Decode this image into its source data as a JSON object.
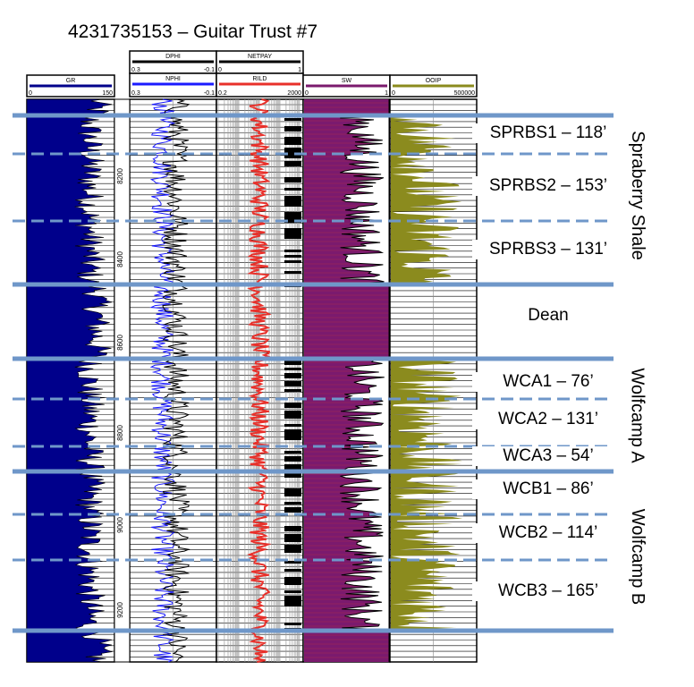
{
  "title": "4231735153 – Guitar Trust #7",
  "colors": {
    "gr": "#00008b",
    "nphi": "#1a1aff",
    "rild": "#e8302a",
    "sw_fill": "#7b1a6e",
    "ooip": "#8b8b1e",
    "zone_line": "#6f97c9"
  },
  "tracks": {
    "gr": {
      "name": "GR",
      "min": "0",
      "max": "150"
    },
    "dphi": {
      "name": "DPHI",
      "min": "0.3",
      "max": "-0.1"
    },
    "nphi": {
      "name": "NPHI",
      "min": "0.3",
      "max": "-0.1"
    },
    "netpay": {
      "name": "NETPAY",
      "min": "0",
      "max": "1"
    },
    "rild": {
      "name": "RILD",
      "min": "0.2",
      "max": "2000"
    },
    "sw": {
      "name": "SW",
      "min": "0",
      "max": "1"
    },
    "ooip": {
      "name": "OOIP",
      "min": "0",
      "max": "500000"
    }
  },
  "depth_ticks": [
    "8200",
    "8400",
    "8600",
    "8800",
    "9000",
    "9200"
  ],
  "zones": [
    {
      "label": "SPRBS1 – 118’"
    },
    {
      "label": "SPRBS2 – 153’"
    },
    {
      "label": "SPRBS3 – 131’"
    },
    {
      "label": "Dean"
    },
    {
      "label": "WCA1 – 76’"
    },
    {
      "label": "WCA2 – 131’"
    },
    {
      "label": "WCA3 – 54’"
    },
    {
      "label": "WCB1 – 86’"
    },
    {
      "label": "WCB2 – 114’"
    },
    {
      "label": "WCB3 – 165’"
    }
  ],
  "groups": [
    {
      "label": "Spraberry Shale"
    },
    {
      "label": "Wolfcamp A"
    },
    {
      "label": "Wolfcamp B"
    }
  ],
  "chart_data": {
    "type": "line",
    "depth_axis": {
      "ticks": [
        8200,
        8400,
        8600,
        8800,
        9000,
        9200
      ]
    },
    "series": [
      {
        "name": "GR",
        "range": [
          0,
          150
        ]
      },
      {
        "name": "DPHI",
        "range": [
          0.3,
          -0.1
        ]
      },
      {
        "name": "NPHI",
        "range": [
          0.3,
          -0.1
        ]
      },
      {
        "name": "NETPAY",
        "range": [
          0,
          1
        ]
      },
      {
        "name": "RILD",
        "range": [
          0.2,
          2000
        ],
        "scale": "log"
      },
      {
        "name": "SW",
        "range": [
          0,
          1
        ]
      },
      {
        "name": "OOIP",
        "range": [
          0,
          500000
        ]
      }
    ],
    "zones": [
      {
        "name": "SPRBS1",
        "thickness_ft": 118
      },
      {
        "name": "SPRBS2",
        "thickness_ft": 153
      },
      {
        "name": "SPRBS3",
        "thickness_ft": 131
      },
      {
        "name": "Dean"
      },
      {
        "name": "WCA1",
        "thickness_ft": 76
      },
      {
        "name": "WCA2",
        "thickness_ft": 131
      },
      {
        "name": "WCA3",
        "thickness_ft": 54
      },
      {
        "name": "WCB1",
        "thickness_ft": 86
      },
      {
        "name": "WCB2",
        "thickness_ft": 114
      },
      {
        "name": "WCB3",
        "thickness_ft": 165
      }
    ]
  }
}
